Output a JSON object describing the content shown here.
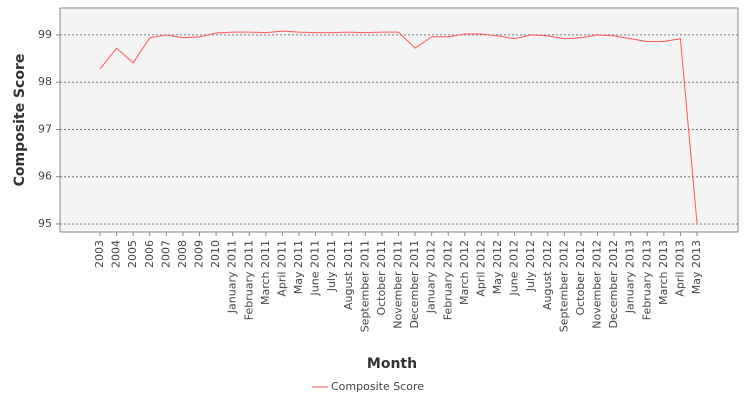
{
  "chart_data": {
    "type": "line",
    "x_label": "Month",
    "y_label": "Composite Score",
    "categories": [
      "2003",
      "2004",
      "2005",
      "2006",
      "2007",
      "2008",
      "2009",
      "2010",
      "January 2011",
      "February 2011",
      "March 2011",
      "April 2011",
      "May 2011",
      "June 2011",
      "July 2011",
      "August 2011",
      "September 2011",
      "October 2011",
      "November 2011",
      "December 2011",
      "January 2012",
      "February 2012",
      "March 2012",
      "April 2012",
      "May 2012",
      "June 2012",
      "July 2012",
      "August 2012",
      "September 2012",
      "October 2012",
      "November 2012",
      "December 2012",
      "January 2013",
      "February 2013",
      "March 2013",
      "April 2013",
      "May 2013"
    ],
    "series": [
      {
        "name": "Composite Score",
        "color": "#ff5555",
        "values": [
          98.28,
          98.72,
          98.41,
          98.94,
          99.0,
          98.94,
          98.96,
          99.04,
          99.06,
          99.06,
          99.05,
          99.08,
          99.06,
          99.05,
          99.05,
          99.06,
          99.05,
          99.06,
          99.06,
          98.72,
          98.96,
          98.96,
          99.02,
          99.02,
          98.98,
          98.92,
          99.0,
          98.98,
          98.92,
          98.94,
          99.0,
          98.98,
          98.92,
          98.86,
          98.86,
          98.92,
          95.02
        ]
      }
    ],
    "ylim": [
      94.83,
      99.57
    ],
    "yticks": [
      95,
      96,
      97,
      98,
      99
    ],
    "grid": true,
    "legend": "bottom"
  }
}
